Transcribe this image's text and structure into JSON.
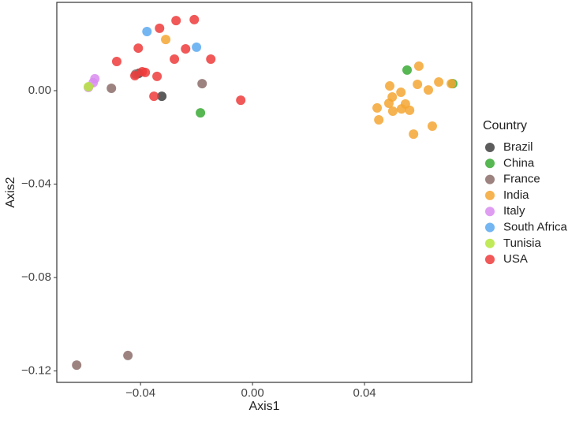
{
  "chart_data": {
    "type": "scatter",
    "x_label": "Axis1",
    "y_label": "Axis2",
    "legend_title": "Country",
    "xlim": [
      -0.0699,
      0.0783
    ],
    "ylim": [
      -0.1249,
      0.0378
    ],
    "xticks": [
      {
        "value": -0.04,
        "label": "−0.04"
      },
      {
        "value": 0,
        "label": "0.00"
      },
      0.04
    ],
    "yticks": [
      {
        "value": -0.12,
        "label": "−0.12"
      },
      {
        "value": -0.08,
        "label": "−0.08"
      },
      {
        "value": -0.04,
        "label": "−0.04"
      },
      {
        "value": 0,
        "label": "0.00"
      }
    ],
    "grid": false,
    "legend": "right",
    "series": [
      {
        "name": "Brazil",
        "color": "#404040",
        "x": [
          -0.0324,
          -0.0406
        ],
        "y": [
          -0.0024,
          0.0074
        ]
      },
      {
        "name": "China",
        "color": "#3aaa35",
        "x": [
          -0.0186,
          0.0552,
          0.0715
        ],
        "y": [
          -0.0095,
          0.0088,
          0.003
        ]
      },
      {
        "name": "France",
        "color": "#8c6d6a",
        "x": [
          -0.0628,
          -0.0445,
          -0.0504,
          -0.018,
          -0.0417
        ],
        "y": [
          -0.1175,
          -0.1134,
          0.001,
          0.003,
          0.0071
        ]
      },
      {
        "name": "India",
        "color": "#f5a633",
        "x": [
          -0.031,
          0.049,
          0.0594,
          0.0665,
          0.0589,
          0.0445,
          0.0451,
          0.0499,
          0.0487,
          0.053,
          0.0501,
          0.0532,
          0.0546,
          0.0561,
          0.0575,
          0.0642,
          0.0628,
          0.071
        ],
        "y": [
          0.0219,
          0.002,
          0.0105,
          0.0037,
          0.0027,
          -0.0074,
          -0.0125,
          -0.0027,
          -0.0054,
          -0.0007,
          -0.0088,
          -0.0078,
          -0.0057,
          -0.0084,
          -0.0186,
          -0.0152,
          0.0003,
          0.003
        ]
      },
      {
        "name": "Italy",
        "color": "#d98cf0",
        "x": [
          -0.0563,
          -0.0569,
          -0.0586
        ],
        "y": [
          0.0051,
          0.0034,
          0.0014
        ]
      },
      {
        "name": "South Africa",
        "color": "#5aa9f0",
        "x": [
          -0.0377,
          -0.02
        ],
        "y": [
          0.0253,
          0.0186
        ]
      },
      {
        "name": "Tunisia",
        "color": "#b5e63c",
        "x": [
          -0.0586
        ],
        "y": [
          0.0017
        ]
      },
      {
        "name": "USA",
        "color": "#ef3b3b",
        "x": [
          -0.0273,
          -0.0208,
          -0.0332,
          -0.0408,
          -0.0239,
          -0.0485,
          -0.0149,
          -0.0279,
          -0.0394,
          -0.0383,
          -0.042,
          -0.0341,
          -0.0352,
          -0.0042
        ],
        "y": [
          0.03,
          0.0304,
          0.0267,
          0.0182,
          0.0179,
          0.0125,
          0.0135,
          0.0135,
          0.0081,
          0.0078,
          0.0064,
          0.0061,
          -0.0024,
          -0.0041
        ]
      }
    ]
  }
}
